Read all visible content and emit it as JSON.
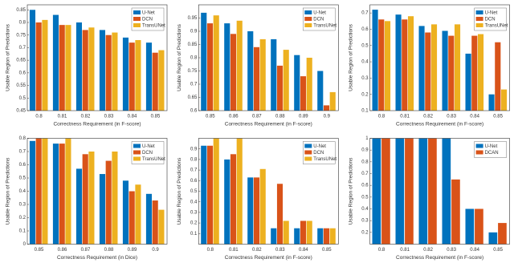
{
  "chart_data": [
    {
      "type": "bar",
      "y_label": "Usable Region of Predictions",
      "x_label": "Correctness Requirement (in F-score)",
      "categories": [
        "0.8",
        "0.81",
        "0.82",
        "0.83",
        "0.84",
        "0.85"
      ],
      "series": [
        {
          "name": "U-Net",
          "color": "#0072bd",
          "values": [
            0.85,
            0.83,
            0.8,
            0.77,
            0.74,
            0.72
          ]
        },
        {
          "name": "DCN",
          "color": "#d95319",
          "values": [
            0.8,
            0.79,
            0.77,
            0.75,
            0.72,
            0.68
          ]
        },
        {
          "name": "TransUNet",
          "color": "#edb120",
          "values": [
            0.81,
            0.79,
            0.78,
            0.76,
            0.73,
            0.69
          ]
        }
      ],
      "ylim": [
        0.45,
        0.87
      ],
      "yticks": [
        0.45,
        0.5,
        0.55,
        0.6,
        0.65,
        0.7,
        0.75,
        0.8,
        0.85
      ],
      "legend": "top-right"
    },
    {
      "type": "bar",
      "y_label": "Usable Region of Predictions",
      "x_label": "Correctness Requirement (in F-score)",
      "categories": [
        "0.85",
        "0.86",
        "0.87",
        "0.88",
        "0.89",
        "0.9"
      ],
      "series": [
        {
          "name": "U-Net",
          "color": "#0072bd",
          "values": [
            0.97,
            0.93,
            0.9,
            0.87,
            0.81,
            0.75
          ]
        },
        {
          "name": "DCN",
          "color": "#d95319",
          "values": [
            0.93,
            0.89,
            0.84,
            0.77,
            0.73,
            0.62
          ]
        },
        {
          "name": "TransUNet",
          "color": "#edb120",
          "values": [
            0.96,
            0.94,
            0.87,
            0.83,
            0.8,
            0.67
          ]
        }
      ],
      "ylim": [
        0.6,
        1.0
      ],
      "yticks": [
        0.6,
        0.65,
        0.7,
        0.75,
        0.8,
        0.85,
        0.9,
        0.95
      ],
      "legend": "top-right"
    },
    {
      "type": "bar",
      "y_label": "Usable Region of Predictions",
      "x_label": "Correctness Requirement (in F-score)",
      "categories": [
        "0.8",
        "0.81",
        "0.82",
        "0.83",
        "0.84",
        "0.85"
      ],
      "series": [
        {
          "name": "U-Net",
          "color": "#0072bd",
          "values": [
            0.72,
            0.69,
            0.62,
            0.59,
            0.45,
            0.2
          ]
        },
        {
          "name": "DCN",
          "color": "#d95319",
          "values": [
            0.66,
            0.66,
            0.58,
            0.56,
            0.56,
            0.52
          ]
        },
        {
          "name": "TransUNet",
          "color": "#edb120",
          "values": [
            0.65,
            0.68,
            0.63,
            0.63,
            0.57,
            0.23
          ]
        }
      ],
      "ylim": [
        0.1,
        0.75
      ],
      "yticks": [
        0.1,
        0.2,
        0.3,
        0.4,
        0.5,
        0.6,
        0.7
      ],
      "legend": "top-right"
    },
    {
      "type": "bar",
      "y_label": "Usable Region of Predictions",
      "x_label": "Correctness Requirement (in Dice)",
      "categories": [
        "0.85",
        "0.86",
        "0.87",
        "0.88",
        "0.89",
        "0.9"
      ],
      "series": [
        {
          "name": "U-Net",
          "color": "#0072bd",
          "values": [
            0.78,
            0.76,
            0.57,
            0.53,
            0.48,
            0.38
          ]
        },
        {
          "name": "DCN",
          "color": "#d95319",
          "values": [
            0.8,
            0.76,
            0.68,
            0.63,
            0.4,
            0.33
          ]
        },
        {
          "name": "TransUNet",
          "color": "#edb120",
          "values": [
            0.8,
            0.8,
            0.7,
            0.7,
            0.45,
            0.26
          ]
        }
      ],
      "ylim": [
        0,
        0.8
      ],
      "yticks": [
        0,
        0.1,
        0.2,
        0.3,
        0.4,
        0.5,
        0.6,
        0.7,
        0.8
      ],
      "legend": "top-right"
    },
    {
      "type": "bar",
      "y_label": "Usable Region of Predictions",
      "x_label": "Correctness Requirement (in F-score)",
      "categories": [
        "0.8",
        "0.81",
        "0.82",
        "0.83",
        "0.84",
        "0.85"
      ],
      "series": [
        {
          "name": "U-Net",
          "color": "#0072bd",
          "values": [
            0.93,
            0.8,
            0.63,
            0.15,
            0.15,
            0.15
          ]
        },
        {
          "name": "DCN",
          "color": "#d95319",
          "values": [
            0.93,
            0.85,
            0.63,
            0.57,
            0.22,
            0.15
          ]
        },
        {
          "name": "TransUNet",
          "color": "#edb120",
          "values": [
            1.0,
            1.0,
            0.71,
            0.22,
            0.22,
            0.15
          ]
        }
      ],
      "ylim": [
        0,
        1.0
      ],
      "yticks": [
        0.1,
        0.2,
        0.3,
        0.4,
        0.5,
        0.6,
        0.7,
        0.8,
        0.9
      ],
      "legend": "top-right"
    },
    {
      "type": "bar",
      "y_label": "Usable Region of Predictions",
      "x_label": "Correctness Requirement (in F-score)",
      "categories": [
        "0.8",
        "0.81",
        "0.82",
        "0.83",
        "0.84",
        "0.85"
      ],
      "series": [
        {
          "name": "U-Net",
          "color": "#0072bd",
          "values": [
            1.0,
            1.0,
            1.0,
            1.0,
            0.4,
            0.2
          ]
        },
        {
          "name": "DCAN",
          "color": "#d95319",
          "values": [
            1.0,
            1.0,
            1.0,
            0.65,
            0.4,
            0.28
          ]
        }
      ],
      "ylim": [
        0.1,
        1.0
      ],
      "yticks": [
        0.2,
        0.3,
        0.4,
        0.5,
        0.6,
        0.7,
        0.8,
        0.9,
        1
      ],
      "legend": "top-right"
    }
  ]
}
